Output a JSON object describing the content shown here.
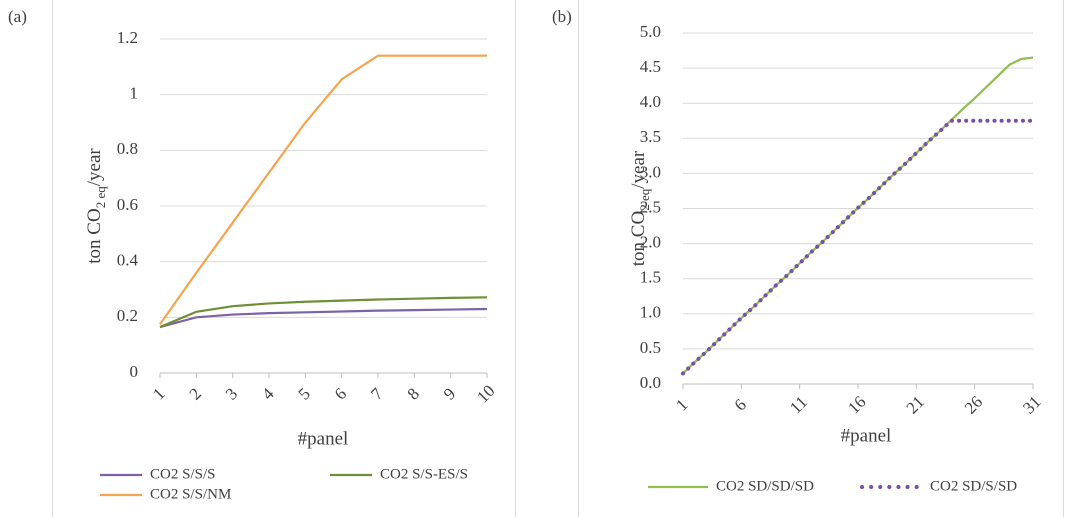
{
  "chart_data": [
    {
      "type": "line",
      "label": "(a)",
      "y_label": {
        "main": "ton CO",
        "sub": "2 eq",
        "rest": "/year"
      },
      "x_label": "#panel",
      "x": [
        1,
        2,
        3,
        4,
        5,
        6,
        7,
        8,
        9,
        10
      ],
      "xlim": [
        1,
        10
      ],
      "xticks": [
        1,
        2,
        3,
        4,
        5,
        6,
        7,
        8,
        9,
        10
      ],
      "ylim": [
        0,
        1.2
      ],
      "yticks": [
        0,
        0.2,
        0.4,
        0.6,
        0.8,
        1,
        1.2
      ],
      "grid": true,
      "series": [
        {
          "name": "CO2 S/S/S",
          "color": "#7e62a9",
          "line_style": "solid",
          "values": [
            0.165,
            0.2,
            0.21,
            0.215,
            0.218,
            0.221,
            0.224,
            0.226,
            0.228,
            0.23
          ]
        },
        {
          "name": "CO2 S/S-ES/S",
          "color": "#6f8f37",
          "line_style": "solid",
          "values": [
            0.165,
            0.22,
            0.24,
            0.25,
            0.256,
            0.26,
            0.264,
            0.267,
            0.27,
            0.272
          ]
        },
        {
          "name": "CO2 S/S/NM",
          "color": "#f7a44c",
          "line_style": "solid",
          "values": [
            0.175,
            0.36,
            0.54,
            0.72,
            0.9,
            1.055,
            1.14,
            1.14,
            1.14,
            1.14
          ]
        }
      ]
    },
    {
      "type": "line",
      "label": "(b)",
      "y_label": {
        "main": "ton CO",
        "sub": "2 eq",
        "rest": "/year"
      },
      "x_label": "#panel",
      "x": [
        1,
        2,
        3,
        4,
        5,
        6,
        7,
        8,
        9,
        10,
        11,
        12,
        13,
        14,
        15,
        16,
        17,
        18,
        19,
        20,
        21,
        22,
        23,
        24,
        25,
        26,
        27,
        28,
        29,
        30,
        31
      ],
      "xlim": [
        1,
        31
      ],
      "xticks": [
        1,
        6,
        11,
        16,
        21,
        26,
        31
      ],
      "ylim": [
        0,
        5
      ],
      "yticks": [
        {
          "value": 0,
          "label": "0.0"
        },
        {
          "value": 0.5,
          "label": "0.5"
        },
        {
          "value": 1,
          "label": "1.0"
        },
        {
          "value": 1.5,
          "label": "1.5"
        },
        {
          "value": 2,
          "label": "2.0"
        },
        {
          "value": 2.5,
          "label": "2.5"
        },
        {
          "value": 3,
          "label": "3.0"
        },
        {
          "value": 3.5,
          "label": "3.5"
        },
        {
          "value": 4,
          "label": "4.0"
        },
        {
          "value": 4.5,
          "label": "4.5"
        },
        {
          "value": 5,
          "label": "5.0"
        }
      ],
      "grid": true,
      "series": [
        {
          "name": "CO2 SD/SD/SD",
          "color": "#8fbf4f",
          "line_style": "solid",
          "values": [
            0.15,
            0.31,
            0.46,
            0.62,
            0.78,
            0.94,
            1.09,
            1.25,
            1.41,
            1.56,
            1.72,
            1.88,
            2.03,
            2.19,
            2.35,
            2.51,
            2.66,
            2.82,
            2.98,
            3.13,
            3.29,
            3.45,
            3.6,
            3.76,
            3.92,
            4.07,
            4.23,
            4.39,
            4.55,
            4.63,
            4.65
          ]
        },
        {
          "name": "CO2 SD/S/SD",
          "color": "#7a4fa6",
          "line_style": "dotted",
          "values": [
            0.15,
            0.31,
            0.46,
            0.62,
            0.78,
            0.94,
            1.09,
            1.25,
            1.41,
            1.56,
            1.72,
            1.88,
            2.03,
            2.19,
            2.35,
            2.51,
            2.66,
            2.82,
            2.98,
            3.13,
            3.29,
            3.45,
            3.6,
            3.75,
            3.75,
            3.75,
            3.75,
            3.75,
            3.75,
            3.75,
            3.75
          ]
        }
      ]
    }
  ]
}
